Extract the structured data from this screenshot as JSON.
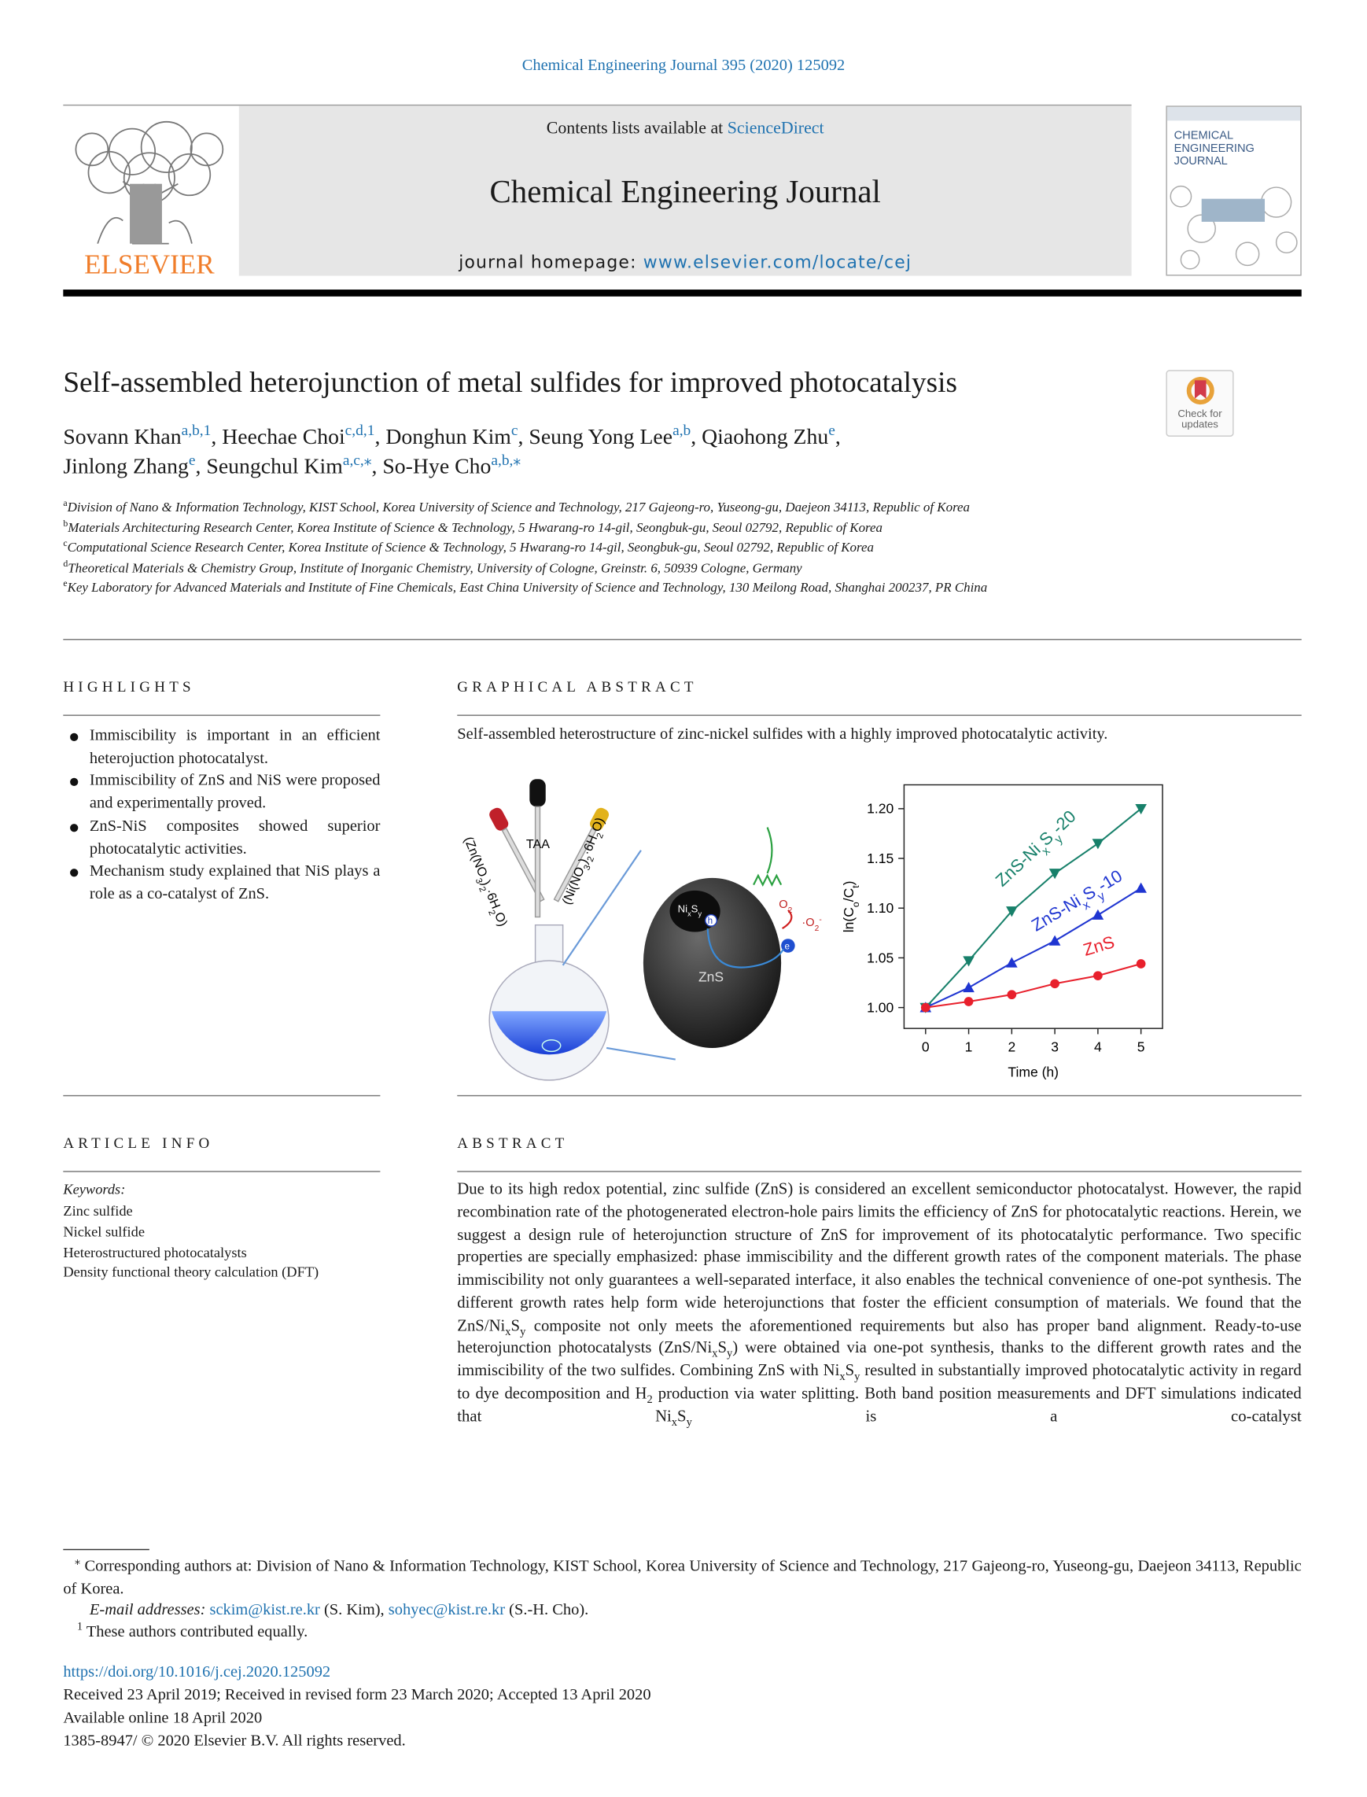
{
  "header": {
    "citation": "Chemical Engineering Journal 395 (2020) 125092",
    "contents": [
      "Contents lists available at ",
      {
        "link": "ScienceDirect"
      }
    ],
    "journal": "Chemical Engineering Journal",
    "homepage": [
      "journal homepage: ",
      {
        "link": "www.elsevier.com/locate/cej"
      }
    ],
    "publisher": "ELSEVIER",
    "cover_title": "CHEMICAL ENGINEERING JOURNAL",
    "crossmark": "Check for updates"
  },
  "article": {
    "title": "Self-assembled heterojunction of metal sulfides for improved photocatalysis",
    "authors": [
      [
        "Sovann Khan",
        {
          "sup": "a,b,1"
        },
        ", Heechae Choi",
        {
          "sup": "c,d,1"
        },
        ", Donghun Kim",
        {
          "sup": "c"
        },
        ", Seung Yong Lee",
        {
          "sup": "a,b"
        },
        ", Qiaohong Zhu",
        {
          "sup": "e"
        },
        ","
      ],
      [
        "Jinlong Zhang",
        {
          "sup": "e"
        },
        ", Seungchul Kim",
        {
          "sup": "a,c,⁎"
        },
        ", So-Hye Cho",
        {
          "sup": "a,b,⁎"
        }
      ]
    ],
    "affiliations": [
      {
        "label": "a",
        "text": "Division of Nano & Information Technology, KIST School, Korea University of Science and Technology, 217 Gajeong-ro, Yuseong-gu, Daejeon 34113, Republic of Korea"
      },
      {
        "label": "b",
        "text": "Materials Architecturing Research Center, Korea Institute of Science & Technology, 5 Hwarang-ro 14-gil, Seongbuk-gu, Seoul 02792, Republic of Korea"
      },
      {
        "label": "c",
        "text": "Computational Science Research Center, Korea Institute of Science & Technology, 5 Hwarang-ro 14-gil, Seongbuk-gu, Seoul 02792, Republic of Korea"
      },
      {
        "label": "d",
        "text": "Theoretical Materials & Chemistry Group, Institute of Inorganic Chemistry, University of Cologne, Greinstr. 6, 50939 Cologne, Germany"
      },
      {
        "label": "e",
        "text": "Key Laboratory for Advanced Materials and Institute of Fine Chemicals, East China University of Science and Technology, 130 Meilong Road, Shanghai 200237, PR China"
      }
    ]
  },
  "highlights": {
    "heading": "HIGHLIGHTS",
    "items": [
      "Immiscibility is important in an efficient heterojuction photocatalyst.",
      "Immiscibility of ZnS and NiS were proposed and experimentally proved.",
      "ZnS-NiS composites showed superior photocatalytic activities.",
      "Mechanism study explained that NiS plays a role as a co-catalyst of ZnS."
    ]
  },
  "graphical_abstract": {
    "heading": "GRAPHICAL ABSTRACT",
    "text": "Self-assembled heterostructure of zinc-nickel sulfides with a highly improved photocatalytic activity.",
    "illustration": {
      "reagent_left": [
        "(Zn(NO",
        {
          "sub": "3"
        },
        ")",
        {
          "sub": "2"
        },
        "·6H",
        {
          "sub": "2"
        },
        "O)"
      ],
      "reagent_middle": "TAA",
      "reagent_right": [
        "(Ni(NO",
        {
          "sub": "3"
        },
        ")",
        {
          "sub": "2"
        },
        "·6H",
        {
          "sub": "2"
        },
        "O)"
      ],
      "cocatalyst": [
        "Ni",
        {
          "sub": "x"
        },
        "S",
        {
          "sub": "y"
        }
      ],
      "hole": "h",
      "semiconductor": "ZnS",
      "oxygen": [
        "O",
        {
          "sub": "2"
        }
      ],
      "radical": [
        "·O",
        {
          "sub": "2"
        },
        {
          "sup": "-"
        }
      ],
      "electron": "e"
    }
  },
  "chart_data": {
    "type": "line",
    "xlabel": "Time (h)",
    "ylabel": [
      "ln(C",
      {
        "sub": "o"
      },
      "/C",
      {
        "sub": "t"
      },
      ")"
    ],
    "x": [
      0,
      1,
      2,
      3,
      4,
      5
    ],
    "xlim": [
      -0.5,
      5.5
    ],
    "xticks": [
      0,
      1,
      2,
      3,
      4,
      5
    ],
    "ylim": [
      0.979,
      1.224
    ],
    "yticks": [
      {
        "value": 1,
        "label": "1.00"
      },
      1.05,
      {
        "value": 1.1,
        "label": "1.10"
      },
      1.15,
      {
        "value": 1.2,
        "label": "1.20"
      }
    ],
    "series": [
      {
        "name": [
          "ZnS-Ni",
          {
            "sub": "x"
          },
          "S",
          {
            "sub": "y"
          },
          "-20"
        ],
        "color": "#17806a",
        "marker": "triangle-down",
        "values": [
          1.0,
          1.047,
          1.097,
          1.135,
          1.165,
          1.2
        ]
      },
      {
        "name": [
          "ZnS-Ni",
          {
            "sub": "x"
          },
          "S",
          {
            "sub": "y"
          },
          "-10"
        ],
        "color": "#1f35d1",
        "marker": "triangle-up",
        "values": [
          1.0,
          1.02,
          1.045,
          1.067,
          1.093,
          1.12
        ]
      },
      {
        "name": [
          "ZnS"
        ],
        "color": "#e8202c",
        "marker": "circle",
        "values": [
          1.0,
          1.006,
          1.013,
          1.024,
          1.032,
          1.044
        ]
      }
    ]
  },
  "article_info": {
    "heading": "ARTICLE INFO",
    "keywords_label": "Keywords:",
    "keywords": [
      "Zinc sulfide",
      "Nickel sulfide",
      "Heterostructured photocatalysts",
      "Density functional theory calculation (DFT)"
    ]
  },
  "abstract": {
    "heading": "ABSTRACT",
    "text": [
      "Due to its high redox potential, zinc sulfide (ZnS) is considered an excellent semiconductor photocatalyst. However, the rapid recombination rate of the photogenerated electron-hole pairs limits the efficiency of ZnS for photocatalytic reactions. Herein, we suggest a design rule of heterojunction structure of ZnS for improvement of its photocatalytic performance. Two specific properties are specially emphasized: phase immiscibility and the different growth rates of the component materials. The phase immiscibility not only guarantees a well-separated interface, it also enables the technical convenience of one-pot synthesis. The different growth rates help form wide heterojunctions that foster the efficient consumption of materials. We found that the ZnS/Ni",
      {
        "sub": "x"
      },
      "S",
      {
        "sub": "y"
      },
      " composite not only meets the aforementioned requirements but also has proper band alignment. Ready-to-use heterojunction photocatalysts (ZnS/Ni",
      {
        "sub": "x"
      },
      "S",
      {
        "sub": "y"
      },
      ") were obtained via one-pot synthesis, thanks to the different growth rates and the immiscibility of the two sulfides. Combining ZnS with Ni",
      {
        "sub": "x"
      },
      "S",
      {
        "sub": "y"
      },
      " resulted in substantially improved photocatalytic activity in regard to dye decomposition and H",
      {
        "sub": "2"
      },
      " production via water splitting. Both band position measurements and DFT simulations indicated that Ni",
      {
        "sub": "x"
      },
      "S",
      {
        "sub": "y"
      },
      " is a co-catalyst"
    ]
  },
  "footnotes": {
    "corresponding": [
      {
        "sup": "⁎"
      },
      " Corresponding authors at: Division of Nano & Information Technology, KIST School, Korea University of Science and Technology, 217 Gajeong-ro, Yuseong-gu, Daejeon 34113, Republic of Korea."
    ],
    "emails": [
      {
        "em": "E-mail addresses:"
      },
      " ",
      {
        "link": "sckim@kist.re.kr"
      },
      " (S. Kim), ",
      {
        "link": "sohyec@kist.re.kr"
      },
      " (S.-H. Cho)."
    ],
    "equal": [
      {
        "sup": "1"
      },
      " These authors contributed equally."
    ]
  },
  "publication": {
    "doi": "https://doi.org/10.1016/j.cej.2020.125092",
    "received": "Received 23 April 2019; Received in revised form 23 March 2020; Accepted 13 April 2020",
    "online": "Available online 18 April 2020",
    "copyright": "1385-8947/ © 2020 Elsevier B.V. All rights reserved."
  }
}
